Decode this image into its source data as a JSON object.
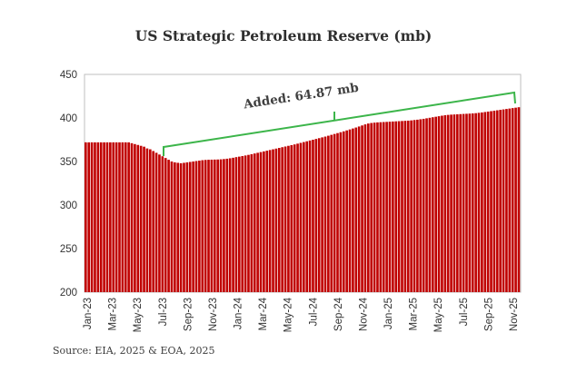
{
  "chart_data": {
    "type": "bar",
    "title": "US Strategic Petroleum Reserve (mb)",
    "ylim": [
      200,
      450
    ],
    "yticks": [
      200,
      250,
      300,
      350,
      400,
      450
    ],
    "grid": "vertical-bar-separators",
    "bar_color": "#c00000",
    "annotation": {
      "text": "Added: 64.87 mb",
      "color": "#3cb54a"
    },
    "x_tick_labels": [
      "Jan-23",
      "Mar-23",
      "May-23",
      "Jul-23",
      "Sep-23",
      "Nov-23",
      "Jan-24",
      "Mar-24",
      "May-24",
      "Jul-24",
      "Sep-24",
      "Nov-24",
      "Jan-25",
      "Mar-25",
      "May-25",
      "Jul-25",
      "Sep-25",
      "Nov-25"
    ],
    "weekly_values": [
      372,
      372,
      372,
      372,
      372,
      372,
      372,
      372,
      372,
      372,
      372,
      372,
      372,
      372,
      372,
      371,
      370,
      369,
      368,
      367,
      365,
      364,
      362,
      360,
      358,
      356,
      354,
      352,
      350,
      349,
      348.5,
      348,
      348.5,
      349,
      349.5,
      350,
      350.5,
      351,
      351.5,
      351.8,
      352,
      352.1,
      352.2,
      352.3,
      352.5,
      352.8,
      353.2,
      353.7,
      354.3,
      355,
      355.6,
      356.2,
      356.9,
      357.6,
      358.4,
      359.2,
      360,
      360.8,
      361.6,
      362.4,
      363.2,
      364,
      364.8,
      365.6,
      366.4,
      367.2,
      368,
      368.8,
      369.6,
      370.5,
      371.4,
      372.3,
      373.2,
      374.1,
      375,
      375.9,
      376.8,
      377.7,
      378.6,
      379.6,
      380.6,
      381.6,
      382.6,
      383.6,
      384.6,
      385.7,
      386.8,
      387.9,
      389,
      390.2,
      391.4,
      392.6,
      393.6,
      394.2,
      394.6,
      394.9,
      395.1,
      395.3,
      395.5,
      395.7,
      395.9,
      396.1,
      396.3,
      396.5,
      396.7,
      396.9,
      397.2,
      397.6,
      398,
      398.5,
      399,
      399.6,
      400.2,
      400.8,
      401.4,
      402,
      402.6,
      403.1,
      403.5,
      403.8,
      404,
      404.2,
      404.4,
      404.6,
      404.8,
      405,
      405.2,
      405.5,
      405.9,
      406.3,
      406.8,
      407.3,
      407.8,
      408.3,
      408.8,
      409.3,
      409.8,
      410.3,
      410.8,
      411.3,
      411.8,
      412.3
    ]
  },
  "source": "Source: EIA, 2025 & EOA, 2025"
}
